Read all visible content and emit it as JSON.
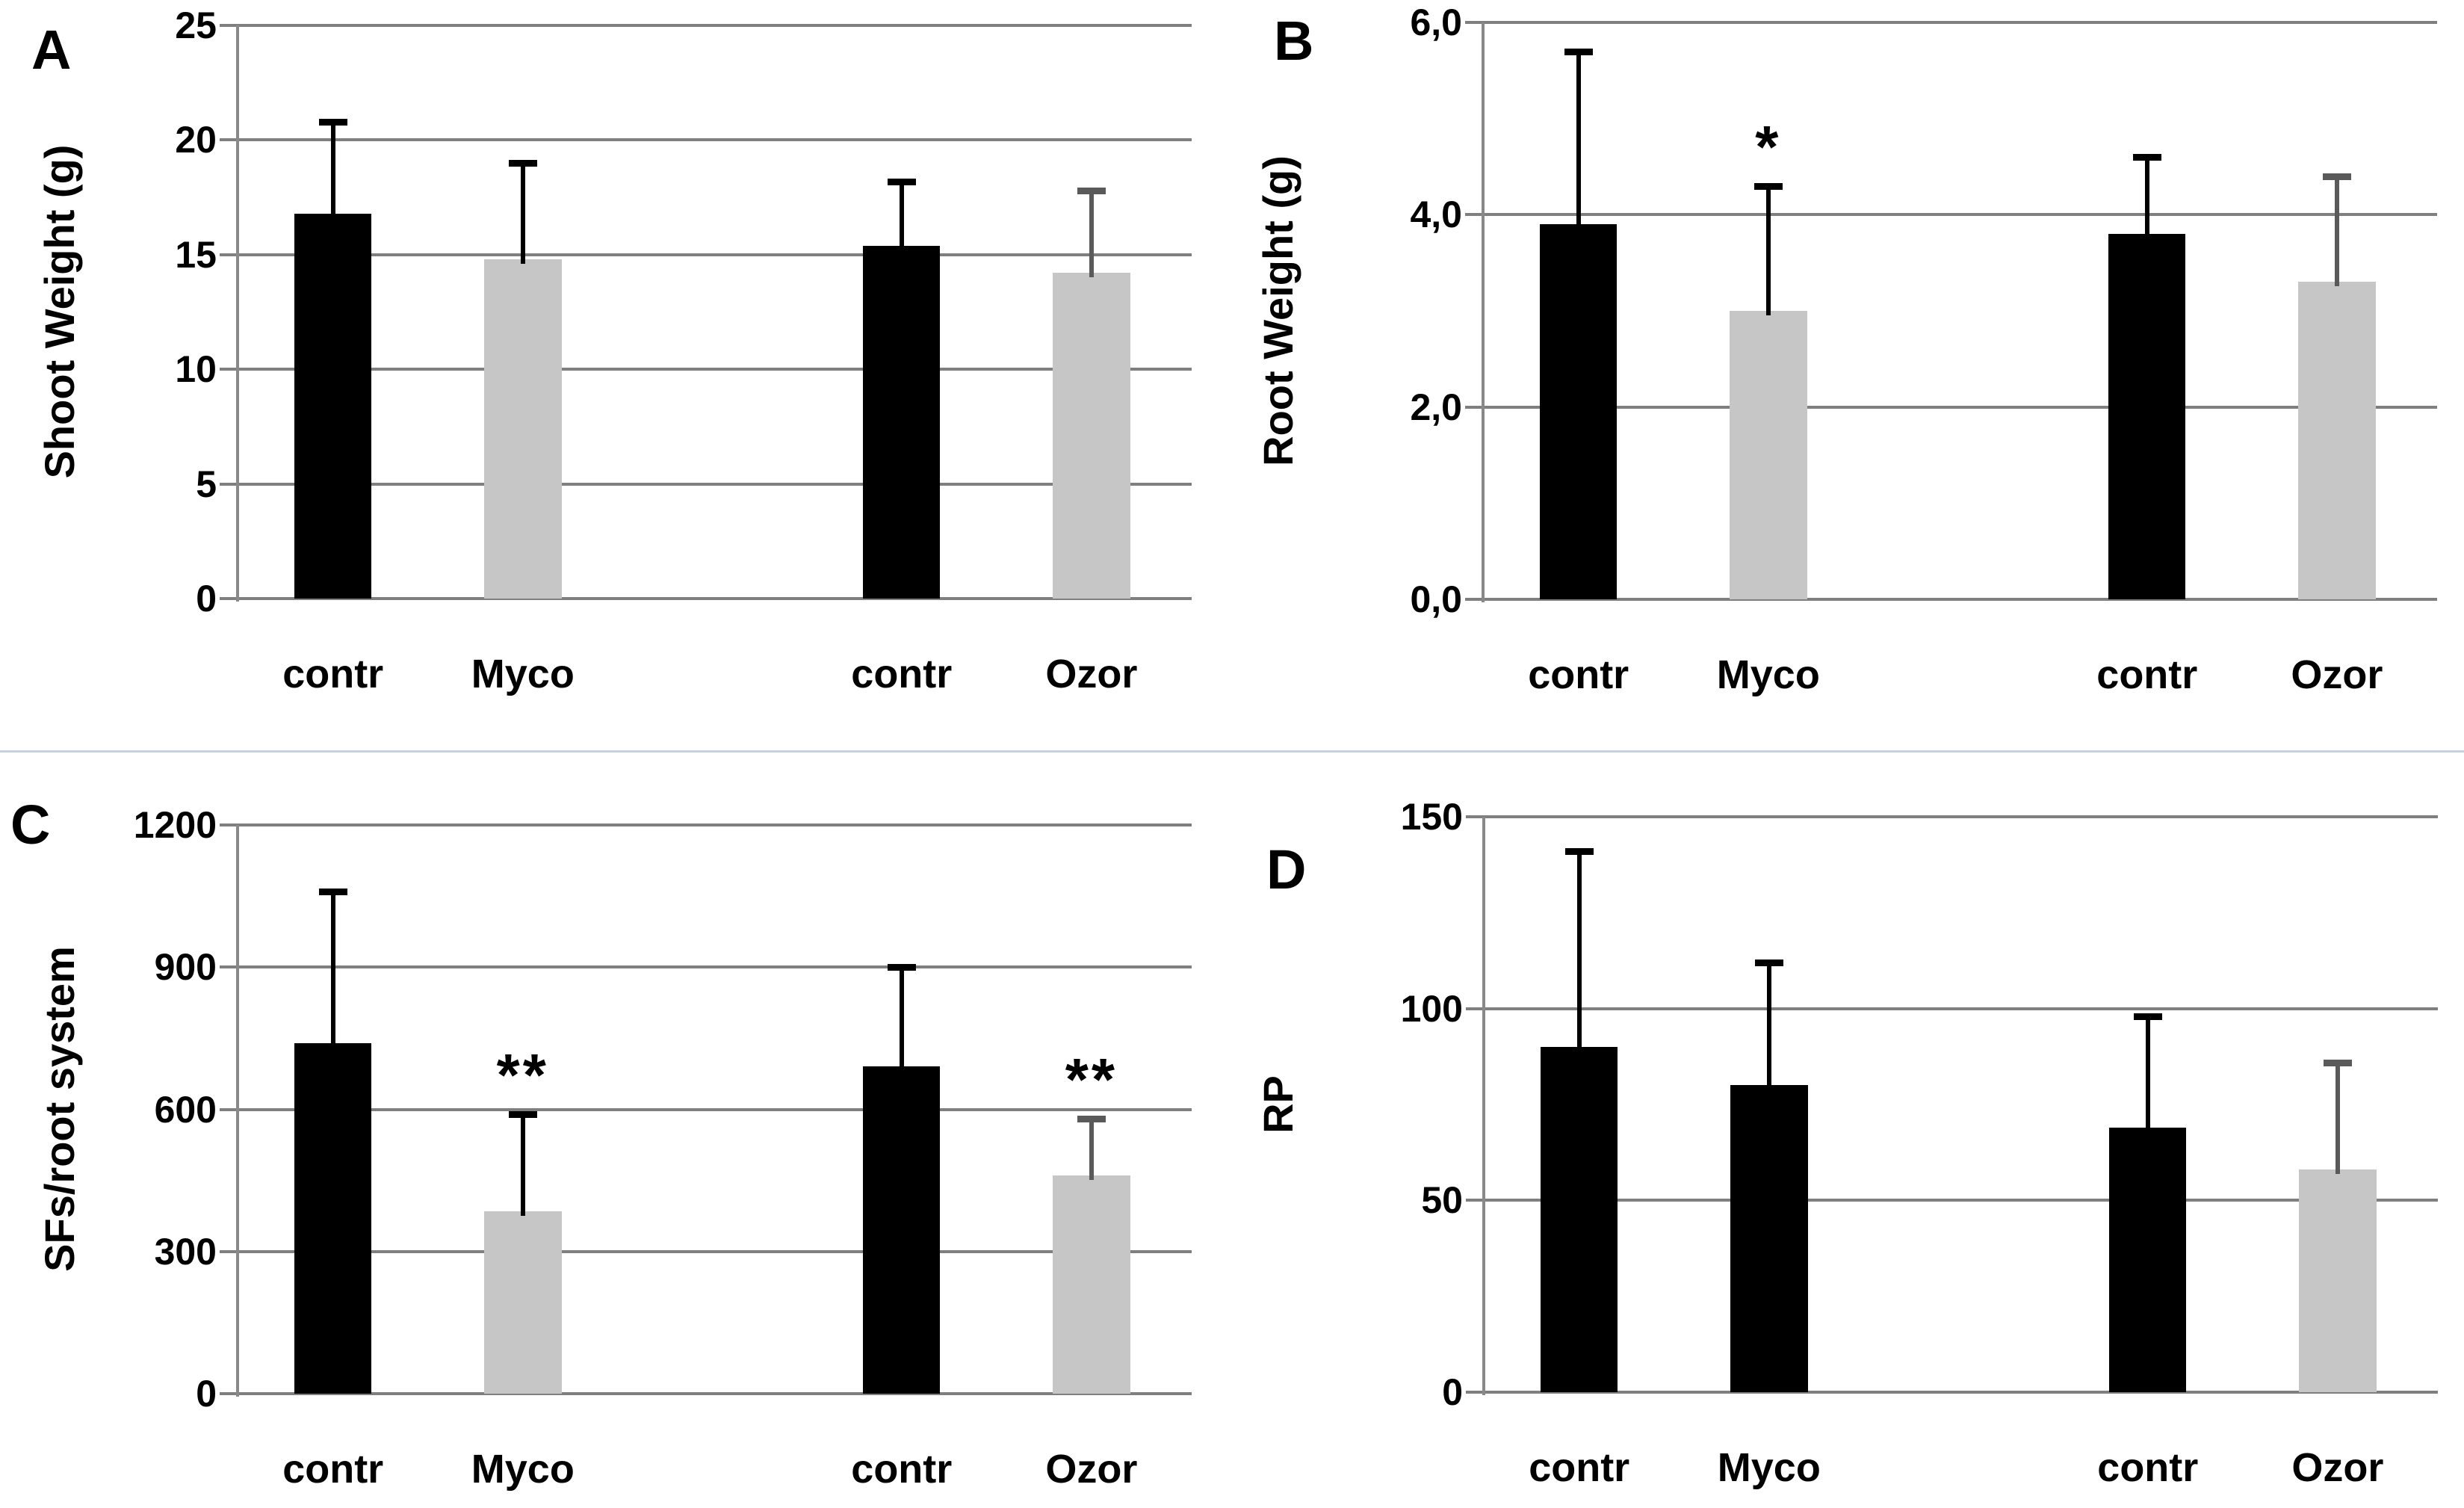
{
  "figure": {
    "colors": {
      "bar_black": "#000000",
      "bar_gray": "#c6c6c6",
      "error_dark": "#000000",
      "error_gray": "#5a5a5a",
      "gridline": "#7f7f7f",
      "axis": "#898989",
      "row_divider": "#c9d3e0",
      "background": "#ffffff",
      "text": "#000000"
    }
  },
  "chart_data": [
    {
      "panel_label": "A",
      "type": "bar",
      "title": "",
      "xlabel": "",
      "ylabel": "Shoot Weight (g)",
      "ylim": [
        0,
        25
      ],
      "grid": true,
      "legend": "none",
      "ytick_values": [
        0,
        5,
        10,
        15,
        20,
        25
      ],
      "ytick_labels": [
        "0",
        "5",
        "10",
        "15",
        "20",
        "25"
      ],
      "categories": [
        "contr",
        "Myco",
        "contr",
        "Ozor"
      ],
      "bars": [
        {
          "category": "contr",
          "value": 16.8,
          "error_top": 20.8,
          "fill": "black",
          "err_color": "dark",
          "sig": ""
        },
        {
          "category": "Myco",
          "value": 14.8,
          "error_top": 19.0,
          "fill": "gray",
          "err_color": "dark",
          "sig": ""
        },
        {
          "category": "contr",
          "value": 15.4,
          "error_top": 18.2,
          "fill": "black",
          "err_color": "dark",
          "sig": ""
        },
        {
          "category": "Ozor",
          "value": 14.2,
          "error_top": 17.8,
          "fill": "gray",
          "err_color": "gray",
          "sig": ""
        }
      ]
    },
    {
      "panel_label": "B",
      "type": "bar",
      "title": "",
      "xlabel": "",
      "ylabel": "Root Weight (g)",
      "ylim": [
        0,
        6
      ],
      "grid": true,
      "legend": "none",
      "ytick_values": [
        0,
        2,
        4,
        6
      ],
      "ytick_labels": [
        "0,0",
        "2,0",
        "4,0",
        "6,0"
      ],
      "categories": [
        "contr",
        "Myco",
        "contr",
        "Ozor"
      ],
      "bars": [
        {
          "category": "contr",
          "value": 3.9,
          "error_top": 5.7,
          "fill": "black",
          "err_color": "dark",
          "sig": ""
        },
        {
          "category": "Myco",
          "value": 3.0,
          "error_top": 4.3,
          "fill": "gray",
          "err_color": "dark",
          "sig": "*"
        },
        {
          "category": "contr",
          "value": 3.8,
          "error_top": 4.6,
          "fill": "black",
          "err_color": "dark",
          "sig": ""
        },
        {
          "category": "Ozor",
          "value": 3.3,
          "error_top": 4.4,
          "fill": "gray",
          "err_color": "gray",
          "sig": ""
        }
      ]
    },
    {
      "panel_label": "C",
      "type": "bar",
      "title": "",
      "xlabel": "",
      "ylabel": "SFs/root system",
      "ylim": [
        0,
        1200
      ],
      "grid": true,
      "legend": "none",
      "ytick_values": [
        0,
        300,
        600,
        900,
        1200
      ],
      "ytick_labels": [
        "0",
        "300",
        "600",
        "900",
        "1200"
      ],
      "categories": [
        "contr",
        "Myco",
        "contr",
        "Ozor"
      ],
      "bars": [
        {
          "category": "contr",
          "value": 740,
          "error_top": 1060,
          "fill": "black",
          "err_color": "dark",
          "sig": ""
        },
        {
          "category": "Myco",
          "value": 385,
          "error_top": 590,
          "fill": "gray",
          "err_color": "dark",
          "sig": "**"
        },
        {
          "category": "contr",
          "value": 690,
          "error_top": 900,
          "fill": "black",
          "err_color": "dark",
          "sig": ""
        },
        {
          "category": "Ozor",
          "value": 460,
          "error_top": 580,
          "fill": "gray",
          "err_color": "gray",
          "sig": "**"
        }
      ]
    },
    {
      "panel_label": "D",
      "type": "bar",
      "title": "",
      "xlabel": "",
      "ylabel": "RP",
      "ylim": [
        0,
        150
      ],
      "grid": true,
      "legend": "none",
      "ytick_values": [
        0,
        50,
        100,
        150
      ],
      "ytick_labels": [
        "0",
        "50",
        "100",
        "150"
      ],
      "categories": [
        "contr",
        "Myco",
        "contr",
        "Ozor"
      ],
      "bars": [
        {
          "category": "contr",
          "value": 90,
          "error_top": 141,
          "fill": "black",
          "err_color": "dark",
          "sig": ""
        },
        {
          "category": "Myco",
          "value": 80,
          "error_top": 112,
          "fill": "black_err_on_gray",
          "err_color": "dark",
          "sig": ""
        },
        {
          "category": "contr",
          "value": 69,
          "error_top": 98,
          "fill": "black",
          "err_color": "dark",
          "sig": ""
        },
        {
          "category": "Ozor",
          "value": 58,
          "error_top": 86,
          "fill": "gray",
          "err_color": "gray",
          "sig": ""
        }
      ]
    }
  ]
}
